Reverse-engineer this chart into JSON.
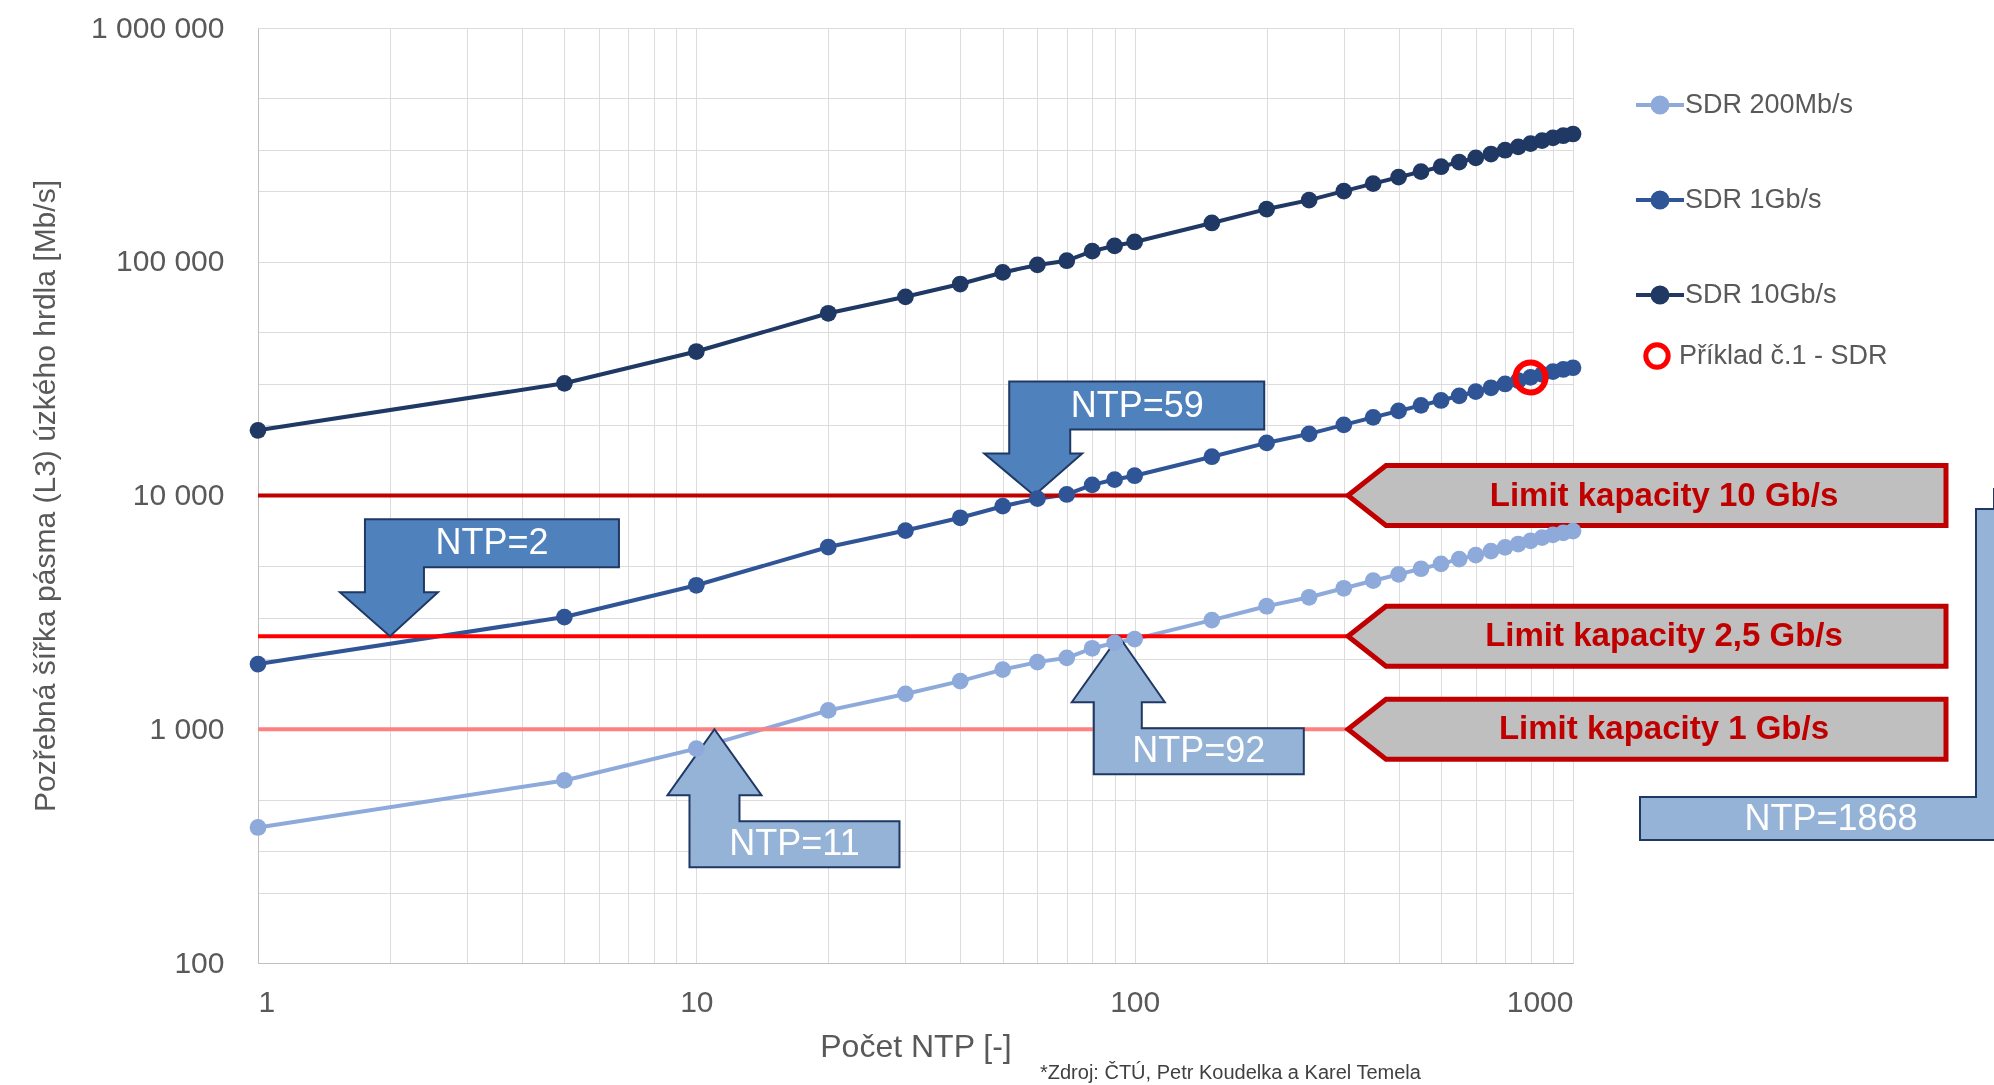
{
  "chart_data": {
    "type": "line",
    "xlabel": "Počet NTP [-]",
    "ylabel": "Pozřebná šířka pásma (L3) úzkého hrdla [Mb/s]",
    "x": [
      1,
      5,
      10,
      20,
      30,
      40,
      50,
      60,
      70,
      80,
      90,
      100,
      150,
      200,
      250,
      300,
      350,
      400,
      450,
      500,
      550,
      600,
      650,
      700,
      750,
      800,
      850,
      900,
      950,
      1000
    ],
    "series": [
      {
        "name": "SDR 200Mb/s",
        "color": "#8eaadb",
        "values": [
          380,
          604,
          826,
          1204,
          1416,
          1606,
          1800,
          1938,
          2020,
          2220,
          2340,
          2430,
          2930,
          3360,
          3670,
          4010,
          4320,
          4600,
          4860,
          5100,
          5340,
          5560,
          5780,
          6000,
          6200,
          6400,
          6600,
          6780,
          6920,
          7040
        ]
      },
      {
        "name": "SDR 1Gb/s",
        "color": "#2f5597",
        "values": [
          1900,
          3020,
          4130,
          6020,
          7080,
          8030,
          9000,
          9690,
          10100,
          11100,
          11700,
          12150,
          14650,
          16800,
          18350,
          20050,
          21600,
          23000,
          24300,
          25500,
          26700,
          27800,
          28900,
          30000,
          31000,
          32000,
          33000,
          33900,
          34600,
          35200
        ]
      },
      {
        "name": "SDR 10Gb/s",
        "color": "#1f3864",
        "values": [
          19000,
          30200,
          41300,
          60200,
          70800,
          80300,
          90000,
          96900,
          101000,
          111000,
          117000,
          121500,
          146500,
          168000,
          183500,
          200500,
          216000,
          230000,
          243000,
          255000,
          267000,
          278000,
          289000,
          300000,
          310000,
          320000,
          330000,
          339000,
          346000,
          352000
        ]
      },
      {
        "name": "Příklad č.1 - SDR",
        "type": "scatter",
        "color": "#ff0000",
        "x": [
          800
        ],
        "values": [
          32000
        ]
      }
    ],
    "xlim": [
      1,
      1000
    ],
    "xticks": [
      1,
      {
        "value": 2,
        "label": null
      },
      {
        "value": 3,
        "label": null
      },
      {
        "value": 4,
        "label": null
      },
      {
        "value": 5,
        "label": null
      },
      {
        "value": 6,
        "label": null
      },
      {
        "value": 7,
        "label": null
      },
      {
        "value": 8,
        "label": null
      },
      {
        "value": 9,
        "label": null
      },
      10,
      {
        "value": 20,
        "label": null
      },
      {
        "value": 30,
        "label": null
      },
      {
        "value": 40,
        "label": null
      },
      {
        "value": 50,
        "label": null
      },
      {
        "value": 60,
        "label": null
      },
      {
        "value": 70,
        "label": null
      },
      {
        "value": 80,
        "label": null
      },
      {
        "value": 90,
        "label": null
      },
      100,
      {
        "value": 200,
        "label": null
      },
      {
        "value": 300,
        "label": null
      },
      {
        "value": 400,
        "label": null
      },
      {
        "value": 500,
        "label": null
      },
      {
        "value": 600,
        "label": null
      },
      {
        "value": 700,
        "label": null
      },
      {
        "value": 800,
        "label": null
      },
      {
        "value": 900,
        "label": null
      },
      1000
    ],
    "ylim": [
      100,
      1000000
    ],
    "yticks": [
      {
        "value": 100,
        "label": "100"
      },
      {
        "value": 200,
        "label": null
      },
      {
        "value": 300,
        "label": null
      },
      {
        "value": 500,
        "label": null
      },
      {
        "value": 1000,
        "label": "1 000"
      },
      {
        "value": 2000,
        "label": null
      },
      {
        "value": 3000,
        "label": null
      },
      {
        "value": 5000,
        "label": null
      },
      {
        "value": 10000,
        "label": "10 000"
      },
      {
        "value": 20000,
        "label": null
      },
      {
        "value": 30000,
        "label": null
      },
      {
        "value": 50000,
        "label": null
      },
      {
        "value": 100000,
        "label": "100 000"
      },
      {
        "value": 200000,
        "label": null
      },
      {
        "value": 300000,
        "label": null
      },
      {
        "value": 500000,
        "label": null
      },
      {
        "value": 1000000,
        "label": "1 000 000"
      }
    ],
    "log": "xy",
    "grid": true,
    "legend": "right",
    "marker": "circle",
    "line_style": "solid",
    "ref_lines": [
      {
        "axis": "y",
        "value": 10000,
        "label": "Limit kapacity 10 Gb/s",
        "color": "#c00000"
      },
      {
        "axis": "y",
        "value": 2500,
        "label": "Limit kapacity 2,5 Gb/s",
        "color": "#ff0000"
      },
      {
        "axis": "y",
        "value": 1000,
        "label": "Limit kapacity 1 Gb/s",
        "color": "#ff8080"
      }
    ],
    "annotations": [
      {
        "text": "NTP=2",
        "x": 2,
        "y": 2500
      },
      {
        "text": "NTP=59",
        "x": 59,
        "y": 10000
      },
      {
        "text": "NTP=11",
        "x": 11,
        "y": 1000
      },
      {
        "text": "NTP=92",
        "x": 92,
        "y": 2500
      },
      "NTP=1868",
      "*Zdroj: ČTÚ, Petr Koudelka a Karel Temela"
    ]
  }
}
